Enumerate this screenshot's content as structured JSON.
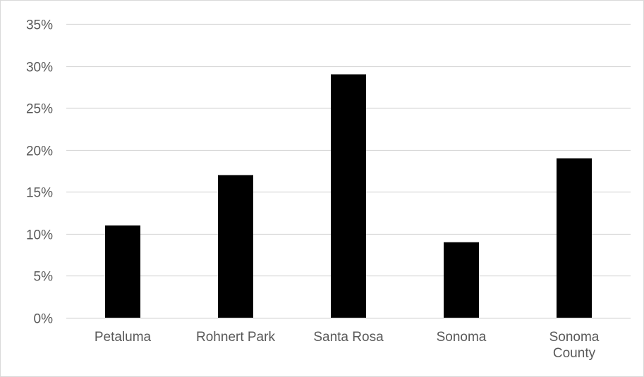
{
  "chart_data": {
    "type": "bar",
    "title": "",
    "xlabel": "",
    "ylabel": "",
    "categories": [
      [
        "Petaluma"
      ],
      [
        "Rohnert Park"
      ],
      [
        "Santa Rosa"
      ],
      [
        "Sonoma"
      ],
      [
        "Sonoma",
        "County"
      ]
    ],
    "values": [
      11,
      17,
      29,
      9,
      19
    ],
    "ylim": [
      0,
      35
    ],
    "yticks": [
      0,
      5,
      10,
      15,
      20,
      25,
      30,
      35
    ],
    "ytick_labels": [
      "0%",
      "5%",
      "10%",
      "15%",
      "20%",
      "25%",
      "30%",
      "35%"
    ],
    "grid": true,
    "legend": "none",
    "bar_color": "#000000",
    "grid_color": "#d9d9d9",
    "label_color": "#595959"
  }
}
